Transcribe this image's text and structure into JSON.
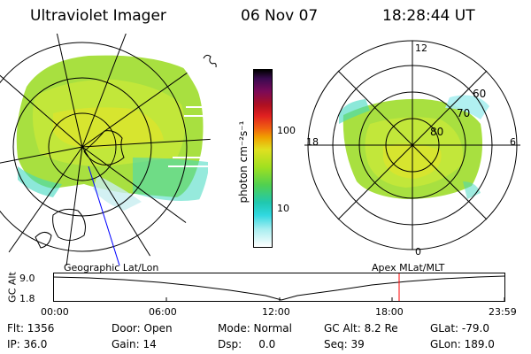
{
  "header": {
    "instrument": "Ultraviolet Imager",
    "date": "06 Nov 07",
    "time": "18:28:44 UT"
  },
  "colorbar": {
    "label": "photon cm⁻²s⁻¹",
    "ticks": [
      "100",
      "10"
    ],
    "colors": [
      "#000000",
      "#3a0a50",
      "#7a0a58",
      "#b01020",
      "#e02020",
      "#f06010",
      "#f0a000",
      "#e0e020",
      "#a0e020",
      "#50d050",
      "#20c8b0",
      "#30d8e0",
      "#a8eef0",
      "#ffffff"
    ]
  },
  "right_polar": {
    "mlt_labels": {
      "top": "12",
      "left": "18",
      "right": "6",
      "bottom": "0"
    },
    "lat_labels": [
      "60",
      "70",
      "80"
    ]
  },
  "timeline": {
    "left_caption": "Geographic Lat/Lon",
    "right_caption": "Apex  MLat/MLT",
    "axis_title": "GC Alt",
    "y_ticks": [
      "9.0",
      "1.8"
    ],
    "x_ticks": [
      "00:00",
      "06:00",
      "12:00",
      "18:00",
      "23:59"
    ],
    "current_marker_color": "#ff0000"
  },
  "info": {
    "flt": "Flt: 1356",
    "ip": "IP: 36.0",
    "door": "Door: Open",
    "gain": "Gain: 14",
    "mode": "Mode: Normal",
    "dsp": "Dsp:     0.0",
    "gcalt": "GC Alt: 8.2 Re",
    "seq": "Seq: 39",
    "glat": "GLat: -79.0",
    "glon": "GLon: 189.0"
  }
}
